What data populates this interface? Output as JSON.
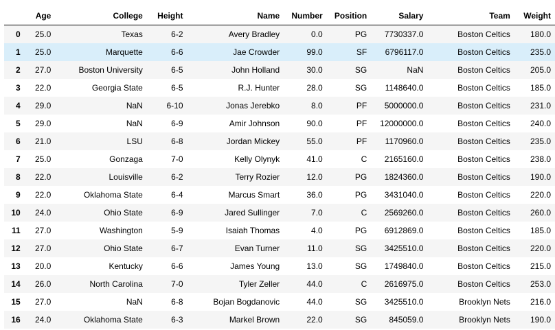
{
  "table": {
    "columns": [
      "",
      "Age",
      "College",
      "Height",
      "Name",
      "Number",
      "Position",
      "Salary",
      "Team",
      "Weight"
    ],
    "rows": [
      [
        "0",
        "25.0",
        "Texas",
        "6-2",
        "Avery Bradley",
        "0.0",
        "PG",
        "7730337.0",
        "Boston Celtics",
        "180.0"
      ],
      [
        "1",
        "25.0",
        "Marquette",
        "6-6",
        "Jae Crowder",
        "99.0",
        "SF",
        "6796117.0",
        "Boston Celtics",
        "235.0"
      ],
      [
        "2",
        "27.0",
        "Boston University",
        "6-5",
        "John Holland",
        "30.0",
        "SG",
        "NaN",
        "Boston Celtics",
        "205.0"
      ],
      [
        "3",
        "22.0",
        "Georgia State",
        "6-5",
        "R.J. Hunter",
        "28.0",
        "SG",
        "1148640.0",
        "Boston Celtics",
        "185.0"
      ],
      [
        "4",
        "29.0",
        "NaN",
        "6-10",
        "Jonas Jerebko",
        "8.0",
        "PF",
        "5000000.0",
        "Boston Celtics",
        "231.0"
      ],
      [
        "5",
        "29.0",
        "NaN",
        "6-9",
        "Amir Johnson",
        "90.0",
        "PF",
        "12000000.0",
        "Boston Celtics",
        "240.0"
      ],
      [
        "6",
        "21.0",
        "LSU",
        "6-8",
        "Jordan Mickey",
        "55.0",
        "PF",
        "1170960.0",
        "Boston Celtics",
        "235.0"
      ],
      [
        "7",
        "25.0",
        "Gonzaga",
        "7-0",
        "Kelly Olynyk",
        "41.0",
        "C",
        "2165160.0",
        "Boston Celtics",
        "238.0"
      ],
      [
        "8",
        "22.0",
        "Louisville",
        "6-2",
        "Terry Rozier",
        "12.0",
        "PG",
        "1824360.0",
        "Boston Celtics",
        "190.0"
      ],
      [
        "9",
        "22.0",
        "Oklahoma State",
        "6-4",
        "Marcus Smart",
        "36.0",
        "PG",
        "3431040.0",
        "Boston Celtics",
        "220.0"
      ],
      [
        "10",
        "24.0",
        "Ohio State",
        "6-9",
        "Jared Sullinger",
        "7.0",
        "C",
        "2569260.0",
        "Boston Celtics",
        "260.0"
      ],
      [
        "11",
        "27.0",
        "Washington",
        "5-9",
        "Isaiah Thomas",
        "4.0",
        "PG",
        "6912869.0",
        "Boston Celtics",
        "185.0"
      ],
      [
        "12",
        "27.0",
        "Ohio State",
        "6-7",
        "Evan Turner",
        "11.0",
        "SG",
        "3425510.0",
        "Boston Celtics",
        "220.0"
      ],
      [
        "13",
        "20.0",
        "Kentucky",
        "6-6",
        "James Young",
        "13.0",
        "SG",
        "1749840.0",
        "Boston Celtics",
        "215.0"
      ],
      [
        "14",
        "26.0",
        "North Carolina",
        "7-0",
        "Tyler Zeller",
        "44.0",
        "C",
        "2616975.0",
        "Boston Celtics",
        "253.0"
      ],
      [
        "15",
        "27.0",
        "NaN",
        "6-8",
        "Bojan Bogdanovic",
        "44.0",
        "SG",
        "3425510.0",
        "Brooklyn Nets",
        "216.0"
      ],
      [
        "16",
        "24.0",
        "Oklahoma State",
        "6-3",
        "Markel Brown",
        "22.0",
        "SG",
        "845059.0",
        "Brooklyn Nets",
        "190.0"
      ]
    ],
    "hovered_row": 1,
    "colors": {
      "stripe": "#f5f5f5",
      "hover": "#d9eefa",
      "header_rule": "#000000"
    }
  }
}
